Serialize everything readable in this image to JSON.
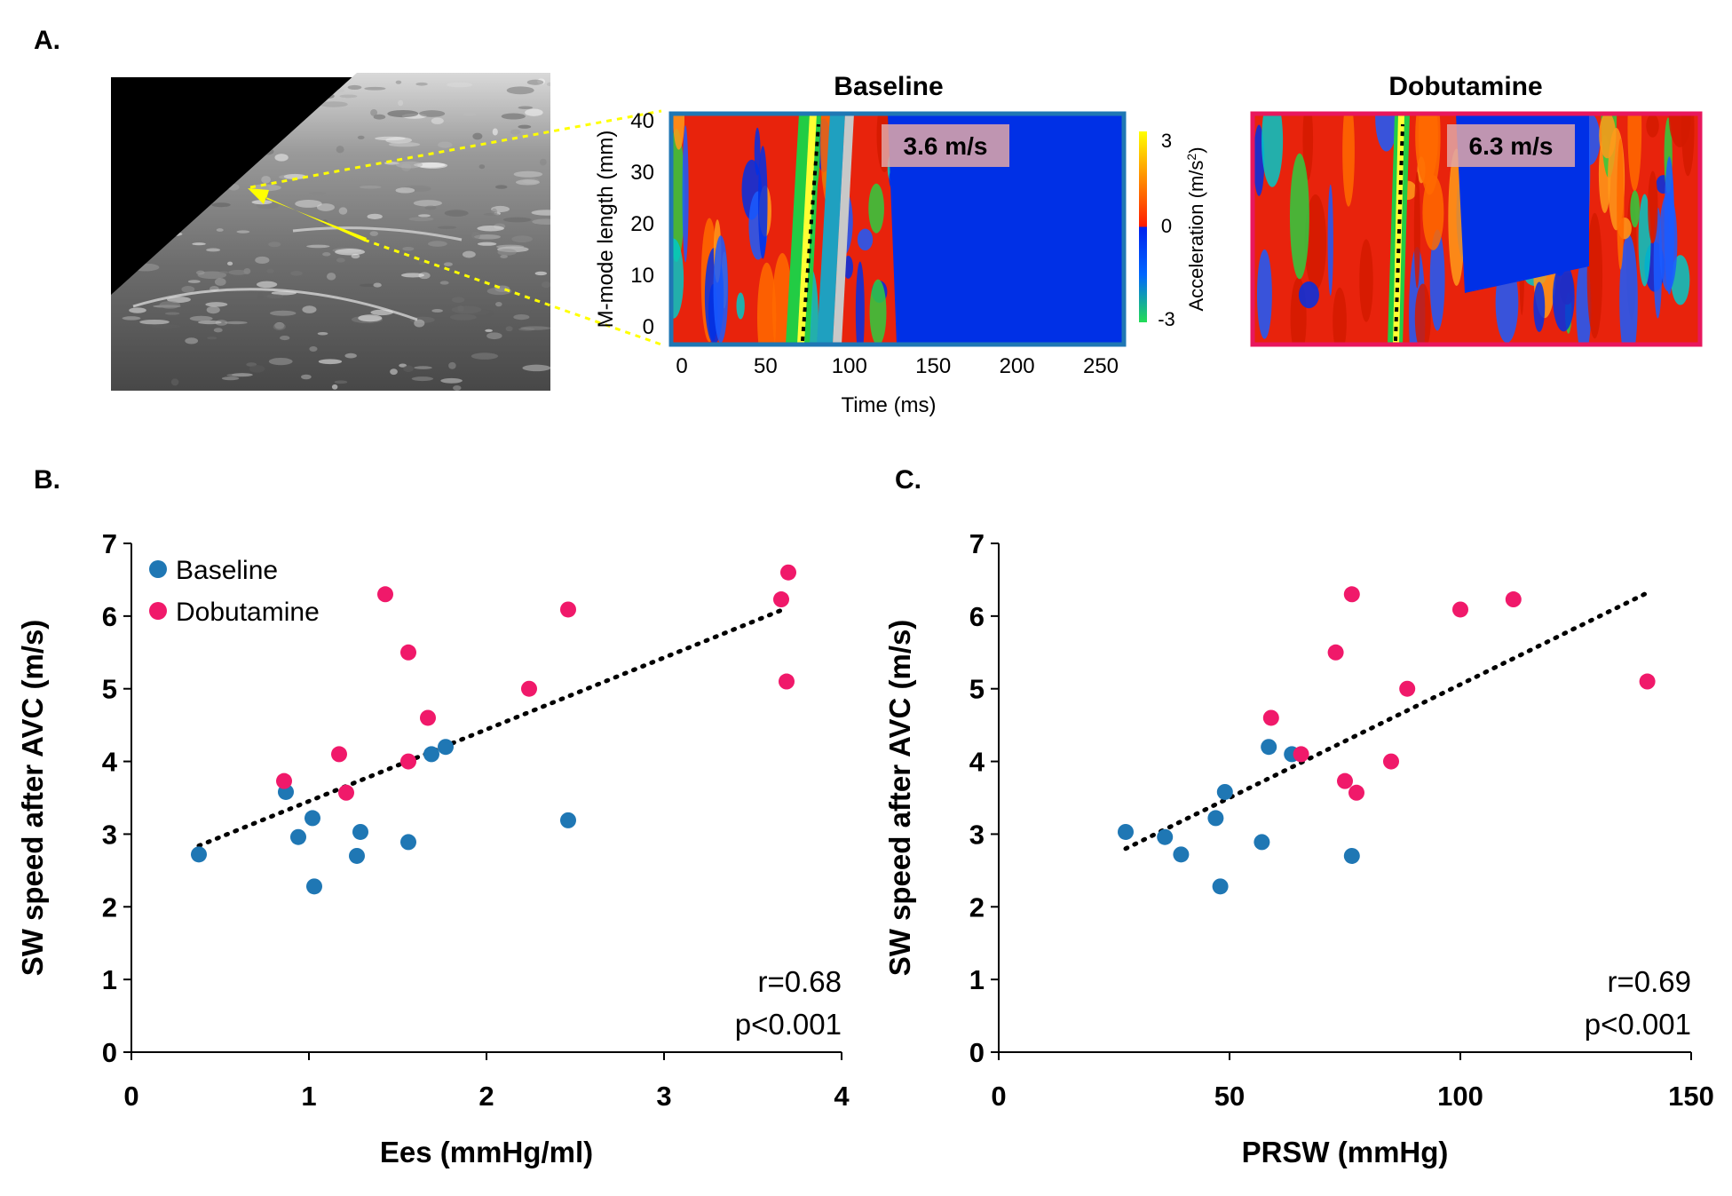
{
  "panel_letters": {
    "a": "A.",
    "b": "B.",
    "c": "C."
  },
  "mmode": {
    "baseline_title": "Baseline",
    "dobutamine_title": "Dobutamine",
    "baseline_speed": "3.6 m/s",
    "dobutamine_speed": "6.3 m/s",
    "ylabel": "M-mode length (mm)",
    "xlabel": "Time (ms)",
    "xticks": [
      "0",
      "50",
      "100",
      "150",
      "200",
      "250"
    ],
    "yticks": [
      "0",
      "10",
      "20",
      "30",
      "40"
    ],
    "colorbar_label": "Acceleration (m/s²)",
    "colorbar_ticks": [
      "3",
      "0",
      "-3"
    ],
    "colors": {
      "baseline_frame": "#1f77b4",
      "dobutamine_frame": "#e8175d",
      "arrow": "#ffff00"
    }
  },
  "colors": {
    "baseline": "#1f77b4",
    "dobutamine": "#f0196a",
    "trend": "#000000"
  },
  "chart_data": [
    {
      "type": "scatter",
      "xlabel": "Ees (mmHg/ml)",
      "ylabel": "SW speed after AVC (m/s)",
      "xlim": [
        0,
        4
      ],
      "ylim": [
        0,
        7
      ],
      "xticks": [
        0,
        1,
        2,
        3,
        4
      ],
      "yticks": [
        0,
        1,
        2,
        3,
        4,
        5,
        6,
        7
      ],
      "legend": [
        "Baseline",
        "Dobutamine"
      ],
      "legend_position": "top-left",
      "annotation": [
        "r=0.68",
        "p<0.001"
      ],
      "series": [
        {
          "name": "Baseline",
          "points": [
            [
              0.38,
              2.72
            ],
            [
              0.87,
              3.58
            ],
            [
              0.94,
              2.96
            ],
            [
              1.02,
              3.22
            ],
            [
              1.03,
              2.28
            ],
            [
              1.27,
              2.7
            ],
            [
              1.29,
              3.03
            ],
            [
              1.56,
              2.89
            ],
            [
              1.69,
              4.1
            ],
            [
              1.77,
              4.2
            ],
            [
              2.46,
              3.19
            ]
          ]
        },
        {
          "name": "Dobutamine",
          "points": [
            [
              0.86,
              3.73
            ],
            [
              1.17,
              4.1
            ],
            [
              1.21,
              3.57
            ],
            [
              1.43,
              6.3
            ],
            [
              1.56,
              5.5
            ],
            [
              1.56,
              4.0
            ],
            [
              1.67,
              4.6
            ],
            [
              2.24,
              5.0
            ],
            [
              2.46,
              6.09
            ],
            [
              3.66,
              6.23
            ],
            [
              3.69,
              5.1
            ],
            [
              3.7,
              6.6
            ]
          ]
        }
      ],
      "trendline": {
        "x": [
          0.38,
          3.66
        ],
        "y": [
          2.84,
          6.08
        ]
      }
    },
    {
      "type": "scatter",
      "xlabel": "PRSW (mmHg)",
      "ylabel": "SW speed after AVC (m/s)",
      "xlim": [
        0,
        150
      ],
      "ylim": [
        0,
        7
      ],
      "xticks": [
        0,
        50,
        100,
        150
      ],
      "yticks": [
        0,
        1,
        2,
        3,
        4,
        5,
        6,
        7
      ],
      "annotation": [
        "r=0.69",
        "p<0.001"
      ],
      "series": [
        {
          "name": "Baseline",
          "points": [
            [
              27.5,
              3.03
            ],
            [
              36,
              2.96
            ],
            [
              39.5,
              2.72
            ],
            [
              47,
              3.22
            ],
            [
              48,
              2.28
            ],
            [
              49,
              3.58
            ],
            [
              57,
              2.89
            ],
            [
              58.5,
              4.2
            ],
            [
              63.5,
              4.1
            ],
            [
              76.5,
              2.7
            ]
          ]
        },
        {
          "name": "Dobutamine",
          "points": [
            [
              59,
              4.6
            ],
            [
              65.5,
              4.1
            ],
            [
              73,
              5.5
            ],
            [
              75,
              3.73
            ],
            [
              76.5,
              6.3
            ],
            [
              77.5,
              3.57
            ],
            [
              85,
              4.0
            ],
            [
              88.5,
              5.0
            ],
            [
              100,
              6.09
            ],
            [
              111.5,
              6.23
            ],
            [
              140.5,
              5.1
            ]
          ]
        }
      ],
      "trendline": {
        "x": [
          27.5,
          140.5
        ],
        "y": [
          2.8,
          6.32
        ]
      }
    }
  ]
}
